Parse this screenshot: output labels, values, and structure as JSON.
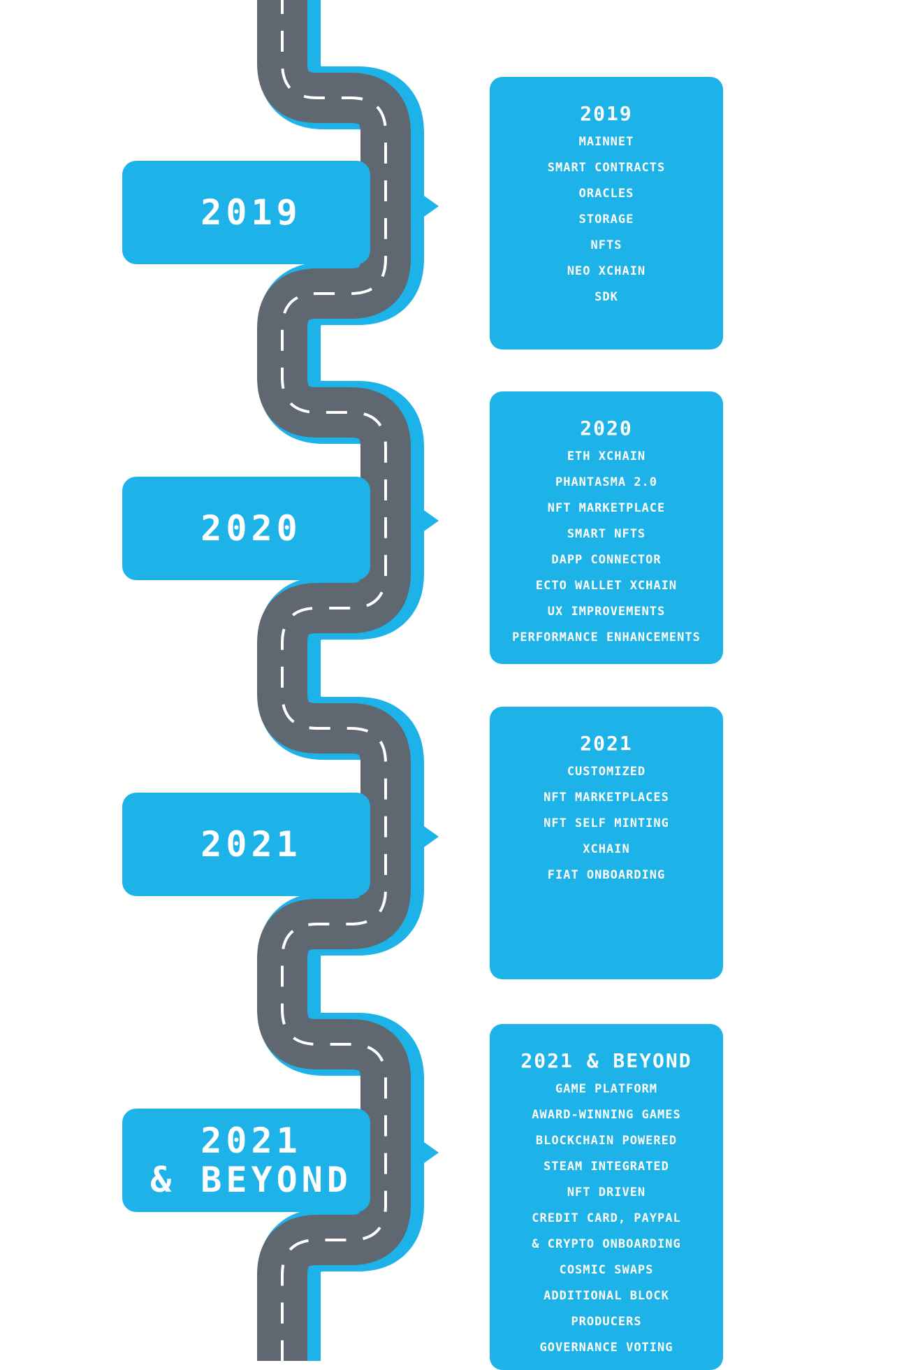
{
  "road": {
    "asphalt_color": "#5f6870",
    "edge_color": "#1db3e8",
    "lane_color": "#ffffff"
  },
  "milestones": [
    {
      "tab_lines": [
        "2019"
      ],
      "card_title": "2019",
      "items": [
        "MAINNET",
        "SMART CONTRACTS",
        "ORACLES",
        "STORAGE",
        "NFTS",
        "NEO XCHAIN",
        "SDK"
      ]
    },
    {
      "tab_lines": [
        "2020"
      ],
      "card_title": "2020",
      "items": [
        "ETH XCHAIN",
        "PHANTASMA 2.0",
        "NFT MARKETPLACE",
        "SMART NFTS",
        "DAPP CONNECTOR",
        "ECTO WALLET XCHAIN",
        "UX IMPROVEMENTS",
        "PERFORMANCE ENHANCEMENTS"
      ]
    },
    {
      "tab_lines": [
        "2021"
      ],
      "card_title": "2021",
      "items": [
        "CUSTOMIZED",
        "NFT MARKETPLACES",
        "NFT SELF MINTING",
        "XCHAIN",
        "FIAT ONBOARDING"
      ]
    },
    {
      "tab_lines": [
        "2021",
        "& BEYOND"
      ],
      "card_title": "2021 & BEYOND",
      "items": [
        "GAME PLATFORM",
        "AWARD-WINNING GAMES",
        "BLOCKCHAIN POWERED",
        "STEAM INTEGRATED",
        "NFT DRIVEN",
        "CREDIT CARD, PAYPAL",
        "& CRYPTO ONBOARDING",
        "COSMIC SWAPS",
        "ADDITIONAL BLOCK",
        "PRODUCERS",
        "GOVERNANCE VOTING"
      ]
    }
  ]
}
